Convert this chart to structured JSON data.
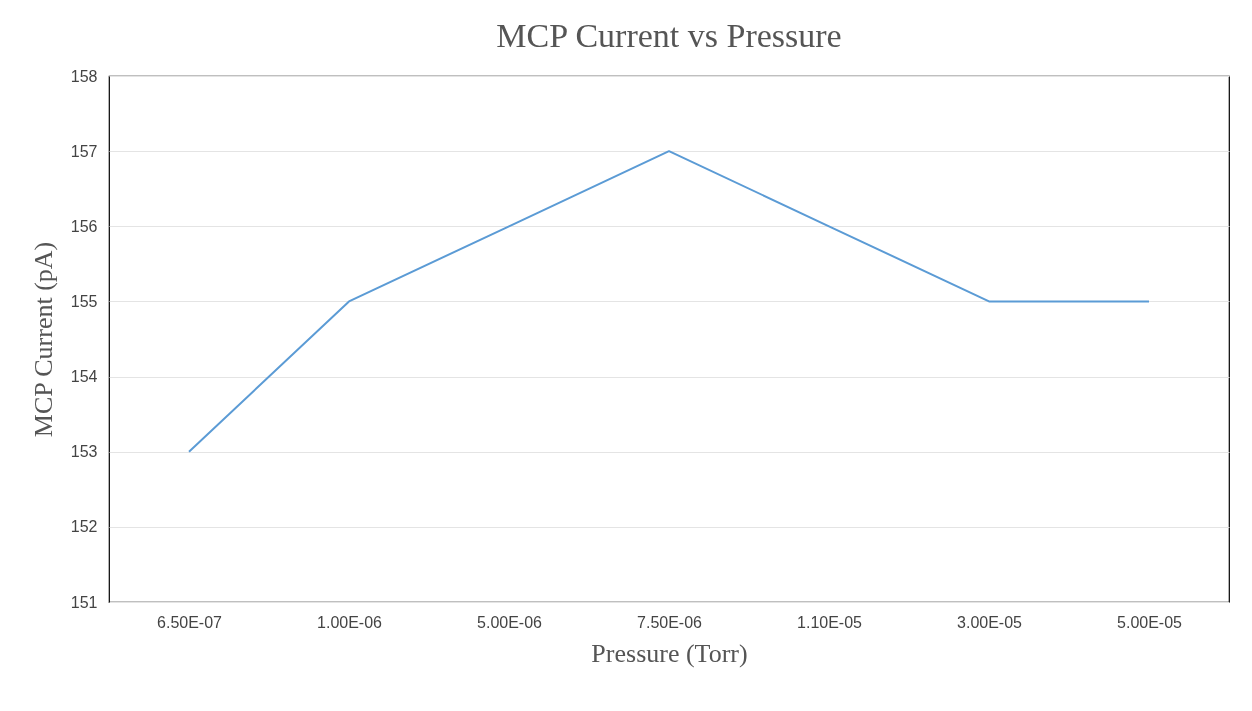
{
  "chart_data": {
    "type": "line",
    "title": "MCP Current vs Pressure",
    "xlabel": "Pressure (Torr)",
    "ylabel": "MCP Current (pA)",
    "categories": [
      "6.50E-07",
      "1.00E-06",
      "5.00E-06",
      "7.50E-06",
      "1.10E-05",
      "3.00E-05",
      "5.00E-05"
    ],
    "series": [
      {
        "color": "#5b9bd5",
        "values": [
          153,
          155,
          156,
          157,
          156,
          155,
          155
        ]
      }
    ],
    "ylim": [
      151,
      158
    ],
    "yticks": [
      151,
      152,
      153,
      154,
      155,
      156,
      157,
      158
    ],
    "grid": "y",
    "legend": false,
    "marker": "none",
    "line_style": "solid"
  }
}
